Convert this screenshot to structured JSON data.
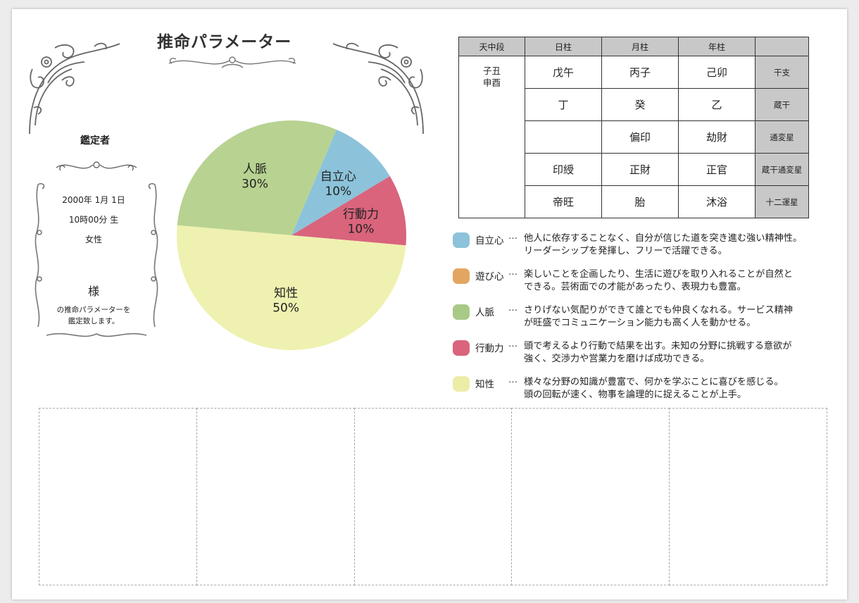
{
  "title": "推命パラメーター",
  "appraiser": {
    "label": "鑑定者",
    "birthdate": "2000年 1月 1日",
    "birthtime": "10時00分 生",
    "gender": "女性",
    "honorific": "様",
    "message_line1": "の推命パラメーターを",
    "message_line2": "鑑定致します。"
  },
  "chart_data": {
    "type": "pie",
    "categories": [
      "自立心",
      "行動力",
      "知性",
      "人脈"
    ],
    "values": [
      10,
      10,
      50,
      30
    ],
    "labels": [
      "10%",
      "10%",
      "50%",
      "30%"
    ],
    "colors": [
      "#8cc3da",
      "#d9647c",
      "#eff1b0",
      "#b8d291"
    ],
    "start": "top-right",
    "direction": "clockwise"
  },
  "table": {
    "headers": [
      "天中段",
      "日柱",
      "月柱",
      "年柱",
      ""
    ],
    "tenchusatsu": [
      "子丑",
      "申酉"
    ],
    "rows": [
      {
        "label": "干支",
        "cells": [
          "戊午",
          "丙子",
          "己卯"
        ]
      },
      {
        "label": "蔵干",
        "cells": [
          "丁",
          "癸",
          "乙"
        ]
      },
      {
        "label": "通変星",
        "cells": [
          "",
          "偏印",
          "劫財"
        ]
      },
      {
        "label": "蔵干通変星",
        "cells": [
          "印綬",
          "正財",
          "正官"
        ]
      },
      {
        "label": "十二運星",
        "cells": [
          "帝旺",
          "胎",
          "沐浴"
        ]
      }
    ]
  },
  "legend": [
    {
      "name": "自立心",
      "dots": "…",
      "color": "#8cc3da",
      "line1": "他人に依存することなく、自分が信じた道を突き進む強い精神性。",
      "line2": "リーダーシップを発揮し、フリーで活躍できる。"
    },
    {
      "name": "遊び心",
      "dots": "…",
      "color": "#e2a661",
      "line1": "楽しいことを企画したり、生活に遊びを取り入れることが自然と",
      "line2": "できる。芸術面での才能があったり、表現力も豊富。"
    },
    {
      "name": "人脈",
      "dots": "…",
      "color": "#a9ca86",
      "line1": "さりげない気配りができて誰とでも仲良くなれる。サービス精神",
      "line2": "が旺盛でコミュニケーション能力も高く人を動かせる。"
    },
    {
      "name": "行動力",
      "dots": "…",
      "color": "#d9647c",
      "line1": "頭で考えるより行動で結果を出す。未知の分野に挑戦する意欲が",
      "line2": "強く、交渉力や営業力を磨けば成功できる。"
    },
    {
      "name": "知性",
      "dots": "…",
      "color": "#eceda7",
      "line1": "様々な分野の知識が豊富で、何かを学ぶことに喜びを感じる。",
      "line2": "頭の回転が速く、物事を論理的に捉えることが上手。"
    }
  ]
}
